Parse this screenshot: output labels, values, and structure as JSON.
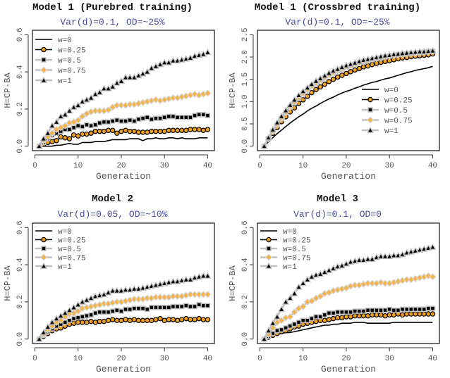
{
  "chart_data": [
    {
      "type": "line",
      "title": "Model 1 (Purebred training)",
      "subtitle": "Var(d)=0.1, OD=~25%",
      "xlabel": "Generation",
      "ylabel": "H=CP-BA",
      "xlim": [
        1,
        40
      ],
      "ylim": [
        0,
        0.6
      ],
      "xticks": [
        "0",
        "10",
        "20",
        "30",
        "40"
      ],
      "xtick_values": [
        0,
        10,
        20,
        30,
        40
      ],
      "yticks": [
        "0.0",
        "0.2",
        "0.4",
        "0.6"
      ],
      "ytick_values": [
        0,
        0.2,
        0.4,
        0.6
      ],
      "legend_position": "top-left",
      "series": [
        {
          "name": "w=0",
          "values": [
            0,
            0,
            0,
            0,
            0.005,
            0.005,
            0.01,
            0.015,
            0.01,
            0.01,
            0.02,
            0.02,
            0.02,
            0.025,
            0.025,
            0.025,
            0.03,
            0.035,
            0.035,
            0.035,
            0.035,
            0.04,
            0.04,
            0.04,
            0.03,
            0.04,
            0.04,
            0.045,
            0.04,
            0.04,
            0.045,
            0.045,
            0.04,
            0.045,
            0.04,
            0.04,
            0.04,
            0.045,
            0.045,
            0.045
          ]
        },
        {
          "name": "w=0.25",
          "values": [
            0,
            0.01,
            0.02,
            0.025,
            0.03,
            0.05,
            0.045,
            0.04,
            0.06,
            0.055,
            0.065,
            0.065,
            0.07,
            0.08,
            0.08,
            0.08,
            0.085,
            0.085,
            0.07,
            0.08,
            0.085,
            0.08,
            0.08,
            0.075,
            0.075,
            0.075,
            0.08,
            0.08,
            0.08,
            0.08,
            0.085,
            0.085,
            0.085,
            0.085,
            0.085,
            0.09,
            0.09,
            0.09,
            0.085,
            0.09
          ]
        },
        {
          "name": "w=0.5",
          "values": [
            0,
            0.02,
            0.04,
            0.06,
            0.07,
            0.08,
            0.09,
            0.09,
            0.1,
            0.11,
            0.105,
            0.115,
            0.11,
            0.115,
            0.125,
            0.13,
            0.13,
            0.135,
            0.14,
            0.135,
            0.135,
            0.14,
            0.135,
            0.145,
            0.15,
            0.155,
            0.145,
            0.15,
            0.15,
            0.155,
            0.16,
            0.16,
            0.155,
            0.155,
            0.155,
            0.155,
            0.165,
            0.17,
            0.17,
            0.165
          ]
        },
        {
          "name": "w=0.75",
          "values": [
            0,
            0.03,
            0.05,
            0.07,
            0.09,
            0.1,
            0.11,
            0.125,
            0.13,
            0.14,
            0.16,
            0.175,
            0.185,
            0.19,
            0.19,
            0.19,
            0.195,
            0.21,
            0.22,
            0.22,
            0.22,
            0.225,
            0.225,
            0.23,
            0.235,
            0.24,
            0.245,
            0.25,
            0.245,
            0.25,
            0.255,
            0.26,
            0.26,
            0.265,
            0.27,
            0.275,
            0.28,
            0.275,
            0.28,
            0.285
          ]
        },
        {
          "name": "w=1",
          "values": [
            0,
            0.04,
            0.07,
            0.11,
            0.13,
            0.16,
            0.17,
            0.19,
            0.21,
            0.22,
            0.24,
            0.25,
            0.26,
            0.28,
            0.29,
            0.31,
            0.31,
            0.32,
            0.34,
            0.35,
            0.37,
            0.37,
            0.37,
            0.38,
            0.39,
            0.4,
            0.42,
            0.43,
            0.44,
            0.45,
            0.45,
            0.46,
            0.46,
            0.465,
            0.47,
            0.475,
            0.485,
            0.49,
            0.495,
            0.505
          ]
        }
      ]
    },
    {
      "type": "line",
      "title": "Model 1 (Crossbred training)",
      "subtitle": "Var(d)=0.1, OD=~25%",
      "xlabel": "Generation",
      "ylabel": "H=CP-BA",
      "xlim": [
        1,
        40
      ],
      "ylim": [
        0,
        2.5
      ],
      "xticks": [
        "0",
        "10",
        "20",
        "30",
        "40"
      ],
      "xtick_values": [
        0,
        10,
        20,
        30,
        40
      ],
      "yticks": [
        "0.0",
        "0.5",
        "1.0",
        "1.5",
        "2.0",
        "2.5"
      ],
      "ytick_values": [
        0,
        0.5,
        1.0,
        1.5,
        2.0,
        2.5
      ],
      "legend_position": "bottom-right",
      "series": [
        {
          "name": "w=0",
          "values": [
            0,
            0.1,
            0.19,
            0.28,
            0.36,
            0.44,
            0.52,
            0.59,
            0.66,
            0.72,
            0.79,
            0.85,
            0.9,
            0.96,
            1.01,
            1.06,
            1.1,
            1.15,
            1.19,
            1.23,
            1.26,
            1.3,
            1.33,
            1.37,
            1.4,
            1.43,
            1.45,
            1.48,
            1.51,
            1.53,
            1.56,
            1.59,
            1.62,
            1.65,
            1.67,
            1.7,
            1.72,
            1.74,
            1.76,
            1.79
          ]
        },
        {
          "name": "w=0.25",
          "values": [
            0,
            0.15,
            0.29,
            0.42,
            0.55,
            0.66,
            0.77,
            0.86,
            0.96,
            1.04,
            1.12,
            1.2,
            1.27,
            1.33,
            1.39,
            1.45,
            1.5,
            1.55,
            1.59,
            1.63,
            1.67,
            1.71,
            1.74,
            1.78,
            1.8,
            1.83,
            1.86,
            1.88,
            1.9,
            1.92,
            1.94,
            1.96,
            1.98,
            1.99,
            2.01,
            2.02,
            2.03,
            2.04,
            2.05,
            2.07
          ]
        },
        {
          "name": "w=0.5",
          "values": [
            0,
            0.17,
            0.33,
            0.48,
            0.62,
            0.75,
            0.87,
            0.98,
            1.08,
            1.17,
            1.26,
            1.34,
            1.41,
            1.47,
            1.53,
            1.59,
            1.64,
            1.69,
            1.73,
            1.77,
            1.8,
            1.84,
            1.87,
            1.89,
            1.92,
            1.94,
            1.96,
            1.98,
            2.0,
            2.02,
            2.03,
            2.05,
            2.06,
            2.07,
            2.08,
            2.09,
            2.1,
            2.11,
            2.12,
            2.13
          ]
        },
        {
          "name": "w=0.75",
          "values": [
            0,
            0.17,
            0.34,
            0.49,
            0.63,
            0.76,
            0.88,
            0.99,
            1.09,
            1.18,
            1.27,
            1.35,
            1.42,
            1.48,
            1.54,
            1.6,
            1.65,
            1.7,
            1.74,
            1.78,
            1.81,
            1.84,
            1.87,
            1.9,
            1.92,
            1.95,
            1.97,
            1.99,
            2.0,
            2.02,
            2.04,
            2.05,
            2.06,
            2.07,
            2.08,
            2.09,
            2.1,
            2.11,
            2.12,
            2.13
          ]
        },
        {
          "name": "w=1",
          "values": [
            0,
            0.19,
            0.37,
            0.53,
            0.67,
            0.8,
            0.92,
            1.04,
            1.14,
            1.23,
            1.31,
            1.39,
            1.46,
            1.52,
            1.58,
            1.64,
            1.69,
            1.73,
            1.77,
            1.81,
            1.84,
            1.87,
            1.9,
            1.93,
            1.95,
            1.97,
            1.99,
            2.01,
            2.03,
            2.04,
            2.06,
            2.07,
            2.08,
            2.09,
            2.1,
            2.11,
            2.12,
            2.12,
            2.13,
            2.14
          ]
        }
      ]
    },
    {
      "type": "line",
      "title": "Model 2",
      "subtitle": "Var(d)=0.05, OD=~10%",
      "xlabel": "Generation",
      "ylabel": "H=CP-BA",
      "xlim": [
        1,
        40
      ],
      "ylim": [
        0,
        0.6
      ],
      "xticks": [
        "0",
        "10",
        "20",
        "30",
        "40"
      ],
      "xtick_values": [
        0,
        10,
        20,
        30,
        40
      ],
      "yticks": [
        "0.0",
        "0.2",
        "0.4",
        "0.6"
      ],
      "ytick_values": [
        0,
        0.2,
        0.4,
        0.6
      ],
      "legend_position": "top-left",
      "series": [
        {
          "name": "w=0",
          "values": [
            0,
            0.015,
            0.03,
            0.045,
            0.05,
            0.06,
            0.07,
            0.08,
            0.085,
            0.09,
            0.09,
            0.09,
            0.09,
            0.09,
            0.095,
            0.095,
            0.1,
            0.1,
            0.1,
            0.1,
            0.1,
            0.1,
            0.1,
            0.1,
            0.1,
            0.1,
            0.1,
            0.1,
            0.105,
            0.1,
            0.1,
            0.1,
            0.1,
            0.1,
            0.105,
            0.1,
            0.1,
            0.105,
            0.1,
            0.1
          ]
        },
        {
          "name": "w=0.25",
          "values": [
            0,
            0.015,
            0.03,
            0.045,
            0.055,
            0.06,
            0.07,
            0.08,
            0.085,
            0.09,
            0.09,
            0.09,
            0.095,
            0.09,
            0.095,
            0.095,
            0.1,
            0.105,
            0.1,
            0.1,
            0.105,
            0.1,
            0.105,
            0.1,
            0.1,
            0.1,
            0.1,
            0.105,
            0.11,
            0.1,
            0.105,
            0.105,
            0.1,
            0.105,
            0.11,
            0.105,
            0.105,
            0.11,
            0.105,
            0.105
          ]
        },
        {
          "name": "w=0.5",
          "values": [
            0,
            0.02,
            0.04,
            0.055,
            0.07,
            0.08,
            0.09,
            0.1,
            0.11,
            0.115,
            0.12,
            0.125,
            0.13,
            0.14,
            0.145,
            0.145,
            0.145,
            0.15,
            0.155,
            0.15,
            0.16,
            0.16,
            0.165,
            0.165,
            0.165,
            0.16,
            0.17,
            0.17,
            0.17,
            0.17,
            0.17,
            0.175,
            0.175,
            0.175,
            0.18,
            0.175,
            0.175,
            0.185,
            0.18,
            0.18
          ]
        },
        {
          "name": "w=0.75",
          "values": [
            0,
            0.025,
            0.05,
            0.07,
            0.09,
            0.1,
            0.12,
            0.135,
            0.14,
            0.15,
            0.165,
            0.17,
            0.175,
            0.18,
            0.185,
            0.19,
            0.19,
            0.195,
            0.2,
            0.2,
            0.205,
            0.21,
            0.215,
            0.215,
            0.215,
            0.22,
            0.22,
            0.225,
            0.225,
            0.225,
            0.225,
            0.23,
            0.23,
            0.23,
            0.235,
            0.24,
            0.24,
            0.24,
            0.24,
            0.24
          ]
        },
        {
          "name": "w=1",
          "values": [
            0,
            0.035,
            0.065,
            0.09,
            0.11,
            0.125,
            0.14,
            0.155,
            0.17,
            0.185,
            0.2,
            0.21,
            0.22,
            0.23,
            0.235,
            0.24,
            0.25,
            0.26,
            0.26,
            0.26,
            0.265,
            0.265,
            0.27,
            0.27,
            0.275,
            0.28,
            0.285,
            0.29,
            0.295,
            0.3,
            0.305,
            0.31,
            0.31,
            0.315,
            0.32,
            0.32,
            0.33,
            0.335,
            0.34,
            0.34
          ]
        }
      ]
    },
    {
      "type": "line",
      "title": "Model 3",
      "subtitle": "Var(d)=0.1, OD=0",
      "xlabel": "Generation",
      "ylabel": "H=CP-BA",
      "xlim": [
        1,
        40
      ],
      "ylim": [
        0,
        0.6
      ],
      "xticks": [
        "0",
        "10",
        "20",
        "30",
        "40"
      ],
      "xtick_values": [
        0,
        10,
        20,
        30,
        40
      ],
      "yticks": [
        "0.0",
        "0.2",
        "0.4",
        "0.6"
      ],
      "ytick_values": [
        0,
        0.2,
        0.4,
        0.6
      ],
      "legend_position": "top-left",
      "series": [
        {
          "name": "w=0",
          "values": [
            0,
            0.01,
            0.02,
            0.025,
            0.03,
            0.035,
            0.035,
            0.04,
            0.045,
            0.05,
            0.055,
            0.06,
            0.065,
            0.07,
            0.075,
            0.075,
            0.08,
            0.08,
            0.085,
            0.085,
            0.085,
            0.09,
            0.09,
            0.09,
            0.085,
            0.085,
            0.085,
            0.085,
            0.085,
            0.085,
            0.09,
            0.09,
            0.09,
            0.09,
            0.09,
            0.09,
            0.09,
            0.09,
            0.09,
            0.09
          ]
        },
        {
          "name": "w=0.25",
          "values": [
            0,
            0.01,
            0.02,
            0.03,
            0.04,
            0.045,
            0.055,
            0.065,
            0.07,
            0.08,
            0.085,
            0.09,
            0.095,
            0.1,
            0.1,
            0.105,
            0.11,
            0.115,
            0.115,
            0.12,
            0.12,
            0.125,
            0.125,
            0.125,
            0.125,
            0.13,
            0.13,
            0.13,
            0.125,
            0.13,
            0.13,
            0.135,
            0.13,
            0.135,
            0.135,
            0.135,
            0.135,
            0.135,
            0.135,
            0.135
          ]
        },
        {
          "name": "w=0.5",
          "values": [
            0,
            0.015,
            0.03,
            0.045,
            0.05,
            0.06,
            0.07,
            0.08,
            0.09,
            0.1,
            0.1,
            0.11,
            0.12,
            0.12,
            0.13,
            0.14,
            0.14,
            0.145,
            0.145,
            0.145,
            0.145,
            0.15,
            0.15,
            0.15,
            0.155,
            0.155,
            0.155,
            0.155,
            0.155,
            0.16,
            0.155,
            0.155,
            0.16,
            0.16,
            0.16,
            0.16,
            0.16,
            0.16,
            0.165,
            0.165
          ]
        },
        {
          "name": "w=0.75",
          "values": [
            0,
            0.025,
            0.06,
            0.09,
            0.1,
            0.115,
            0.12,
            0.145,
            0.165,
            0.175,
            0.2,
            0.205,
            0.22,
            0.23,
            0.245,
            0.25,
            0.26,
            0.265,
            0.27,
            0.275,
            0.285,
            0.29,
            0.29,
            0.295,
            0.3,
            0.3,
            0.3,
            0.305,
            0.3,
            0.3,
            0.305,
            0.31,
            0.315,
            0.32,
            0.32,
            0.325,
            0.33,
            0.335,
            0.34,
            0.335
          ]
        },
        {
          "name": "w=1",
          "values": [
            0,
            0.045,
            0.085,
            0.12,
            0.16,
            0.2,
            0.22,
            0.245,
            0.28,
            0.3,
            0.32,
            0.335,
            0.345,
            0.35,
            0.36,
            0.37,
            0.38,
            0.39,
            0.395,
            0.405,
            0.415,
            0.42,
            0.425,
            0.425,
            0.43,
            0.43,
            0.44,
            0.445,
            0.445,
            0.445,
            0.45,
            0.45,
            0.455,
            0.465,
            0.47,
            0.475,
            0.48,
            0.485,
            0.49,
            0.495
          ]
        }
      ]
    }
  ],
  "colors": {
    "orange": "#f0a020",
    "light_orange": "#f5b347",
    "black": "#000000",
    "halo": "#c0c0c0",
    "subtitle": "#4a4aa0",
    "axis_text": "#555555"
  }
}
